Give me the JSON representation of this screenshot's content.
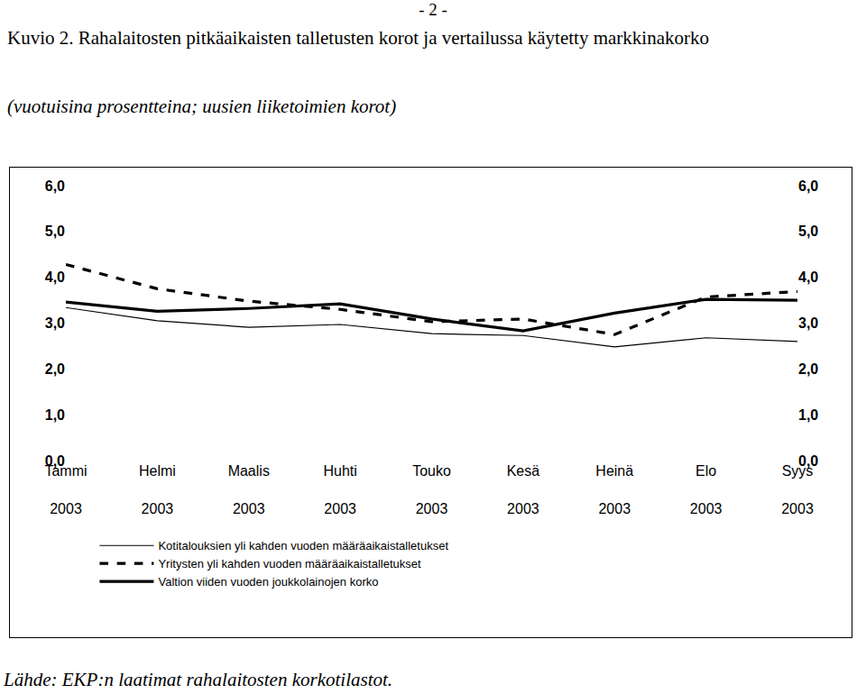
{
  "page_number": "- 2 -",
  "source": "Lähde: EKP:n laatimat rahalaitosten korkotilastot.",
  "chart_data": {
    "type": "line",
    "title": "Kuvio 2. Rahalaitosten pitkäaikaisten talletusten korot ja vertailussa käytetty markkinakorko",
    "subtitle": "(vuotuisina prosentteina; uusien liiketoimien korot)",
    "categories": [
      "Tammi 2003",
      "Helmi 2003",
      "Maalis 2003",
      "Huhti 2003",
      "Touko 2003",
      "Kesä 2003",
      "Heinä 2003",
      "Elo 2003",
      "Syys 2003"
    ],
    "series": [
      {
        "name": "Kotitalouksien yli kahden vuoden määräaikaistalletukset",
        "color": "#000000",
        "line_style": "solid",
        "values": [
          3.34,
          3.05,
          2.91,
          2.97,
          2.77,
          2.73,
          2.48,
          2.68,
          2.6
        ]
      },
      {
        "name": "Yritysten yli kahden vuoden määräaikaistalletukset",
        "color": "#000000",
        "line_style": "dash",
        "values": [
          4.28,
          3.75,
          3.48,
          3.3,
          3.03,
          3.09,
          2.75,
          3.57,
          3.69
        ]
      },
      {
        "name": "Valtion viiden vuoden joukkolainojen korko",
        "color": "#000000",
        "line_style": "solid",
        "values": [
          3.46,
          3.26,
          3.32,
          3.42,
          3.09,
          2.83,
          3.22,
          3.52,
          3.5
        ]
      }
    ],
    "ylim": [
      0,
      6
    ],
    "yticks": [
      {
        "value": 0,
        "label": "0,0"
      },
      {
        "value": 1,
        "label": "1,0"
      },
      {
        "value": 2,
        "label": "2,0"
      },
      {
        "value": 3,
        "label": "3,0"
      },
      {
        "value": 4,
        "label": "4,0"
      },
      {
        "value": 5,
        "label": "5,0"
      },
      {
        "value": 6,
        "label": "6,0"
      }
    ],
    "y2lim": [
      0,
      6
    ],
    "y2ticks": [
      {
        "value": 0,
        "label": "0,0"
      },
      {
        "value": 1,
        "label": "1,0"
      },
      {
        "value": 2,
        "label": "2,0"
      },
      {
        "value": 3,
        "label": "3,0"
      },
      {
        "value": 4,
        "label": "4,0"
      },
      {
        "value": 5,
        "label": "5,0"
      },
      {
        "value": 6,
        "label": "6,0"
      }
    ],
    "grid": false,
    "legend": "bottom"
  }
}
